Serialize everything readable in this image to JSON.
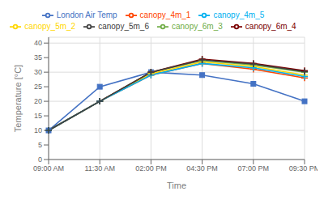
{
  "chart_data": {
    "type": "line",
    "xlabel": "Time",
    "ylabel": "Temperature [°C]",
    "categories": [
      "09:00 AM",
      "11:30 AM",
      "02:00 PM",
      "04:30 PM",
      "07:00 PM",
      "09:30 PM"
    ],
    "series": [
      {
        "name": "London Air Temp",
        "values": [
          10,
          25,
          30,
          29,
          26,
          20
        ],
        "color": "#4472C4",
        "marker": "square",
        "line_style": "solid"
      },
      {
        "name": "canopy_4m_1",
        "values": [
          10,
          20,
          29,
          33,
          31,
          28
        ],
        "color": "#FF4500",
        "marker": "plus",
        "line_style": "solid"
      },
      {
        "name": "canopy_5m_2",
        "values": [
          10,
          20,
          29.5,
          33.5,
          32,
          29
        ],
        "color": "#FFD700",
        "marker": "plus",
        "line_style": "solid"
      },
      {
        "name": "canopy_6m_3",
        "values": [
          10,
          20,
          30,
          34,
          32.5,
          30
        ],
        "color": "#70AD47",
        "marker": "plus",
        "line_style": "solid"
      },
      {
        "name": "canopy_6m_4",
        "values": [
          10,
          20,
          30,
          34.5,
          33,
          30.5
        ],
        "color": "#7B0000",
        "marker": "plus",
        "line_style": "solid"
      },
      {
        "name": "canopy_4m_5",
        "values": [
          10,
          20,
          29,
          33,
          31.5,
          28.5
        ],
        "color": "#00B0F0",
        "marker": "plus",
        "line_style": "solid"
      },
      {
        "name": "canopy_5m_6",
        "values": [
          10,
          20,
          30,
          34.2,
          32.8,
          30.2
        ],
        "color": "#404040",
        "marker": "plus",
        "line_style": "solid"
      }
    ],
    "ylim": [
      0,
      42
    ],
    "yticks": [
      0,
      5,
      10,
      15,
      20,
      25,
      30,
      35,
      40
    ],
    "grid": true,
    "legend": "top"
  }
}
